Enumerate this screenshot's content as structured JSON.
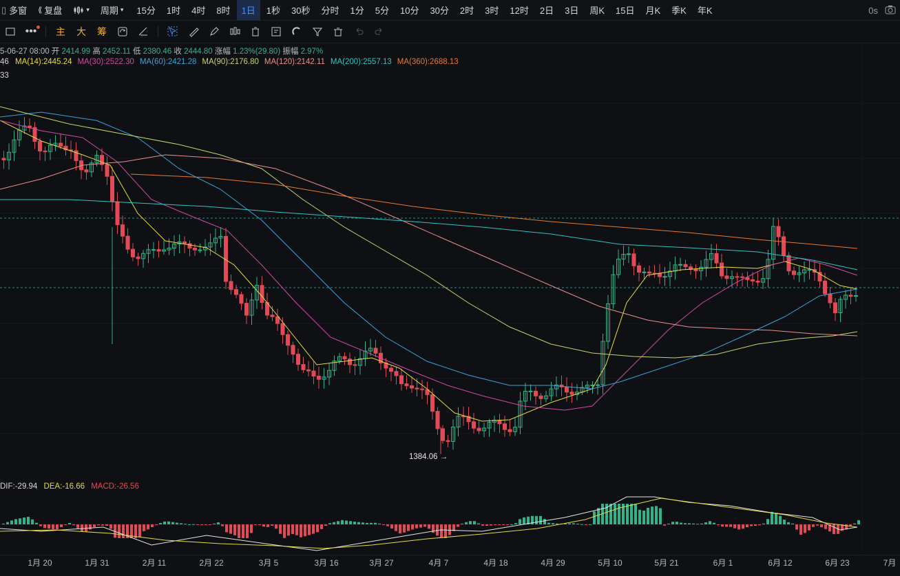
{
  "toolbar": {
    "multi_window": "多窗",
    "adjust": "复盘",
    "period_menu": "周期",
    "periods": [
      "15分",
      "1时",
      "4时",
      "8时",
      "1日",
      "1秒",
      "30秒",
      "分时",
      "1分",
      "5分",
      "10分",
      "30分",
      "2时",
      "3时",
      "12时",
      "2日",
      "3日",
      "周K",
      "15日",
      "月K",
      "季K",
      "年K"
    ],
    "active_period": "1日",
    "right_label": "0s"
  },
  "drawbar": {
    "labels": [
      "主",
      "大",
      "筹"
    ]
  },
  "info": {
    "date": "5-06-27 08:00",
    "open_label": "开",
    "open": "2414.99",
    "high_label": "高",
    "high": "2452.11",
    "low_label": "低",
    "low": "2380.46",
    "close_label": "收",
    "close": "2444.80",
    "change_label": "涨幅",
    "change": "1.23%(29.80)",
    "amp_label": "振幅",
    "amp": "2.97%",
    "ma_prefix": "46",
    "ma": [
      {
        "label": "MA(14):2445.24",
        "color": "#e5dc45"
      },
      {
        "label": "MA(30):2522.30",
        "color": "#d14aa5"
      },
      {
        "label": "MA(60):2421.28",
        "color": "#3aa3d8"
      },
      {
        "label": "MA(90):2176.80",
        "color": "#c5d672"
      },
      {
        "label": "MA(120):2142.11",
        "color": "#e88f8f"
      },
      {
        "label": "MA(200):2557.13",
        "color": "#2ec4c4"
      },
      {
        "label": "MA(360):2688.13",
        "color": "#e87a2e"
      }
    ],
    "line3": "33"
  },
  "min_label": "1384.06 →",
  "macd": {
    "dif": "DIF:-29.94",
    "dea": "DEA:-16.66",
    "macd": "MACD:-26.56"
  },
  "colors": {
    "up": "#2fb58c",
    "down": "#e24b55"
  },
  "x_labels": [
    "1月 20",
    "1月 31",
    "2月 11",
    "2月 22",
    "3月 5",
    "3月 16",
    "3月 27",
    "4月 7",
    "4月 18",
    "4月 29",
    "5月 10",
    "5月 21",
    "6月 1",
    "6月 12",
    "6月 23",
    "7月"
  ],
  "chart_data": {
    "type": "candlestick",
    "price_min": 1384.06,
    "last_close": 2444.8
  }
}
